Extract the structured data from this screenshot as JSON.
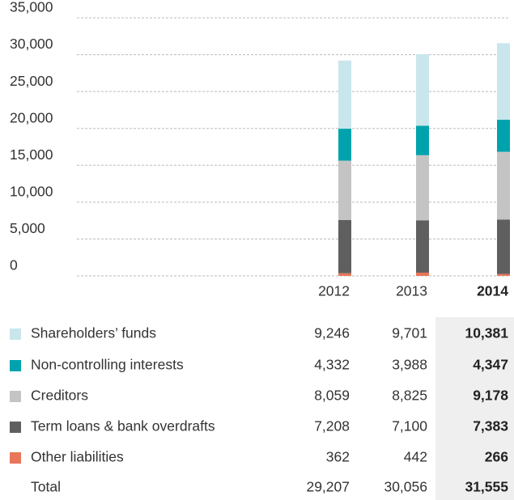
{
  "chart_data": {
    "type": "bar",
    "stacked": true,
    "categories": [
      "2012",
      "2013",
      "2014"
    ],
    "highlight_index": 2,
    "ylim": [
      0,
      35000
    ],
    "yticks": [
      {
        "value": 0,
        "label": "0"
      },
      {
        "value": 5000,
        "label": "5,000"
      },
      {
        "value": 10000,
        "label": "10,000"
      },
      {
        "value": 15000,
        "label": "15,000"
      },
      {
        "value": 20000,
        "label": "20,000"
      },
      {
        "value": 25000,
        "label": "25,000"
      },
      {
        "value": 30000,
        "label": "30,000"
      },
      {
        "value": 35000,
        "label": "35,000"
      }
    ],
    "grid": true,
    "series": [
      {
        "name": "Shareholders’ funds",
        "color": "#c9e6ec",
        "values": [
          9246,
          9701,
          10381
        ],
        "value_labels": [
          "9,246",
          "9,701",
          "10,381"
        ]
      },
      {
        "name": "Non-controlling interests",
        "color": "#00a3ad",
        "values": [
          4332,
          3988,
          4347
        ],
        "value_labels": [
          "4,332",
          "3,988",
          "4,347"
        ]
      },
      {
        "name": "Creditors",
        "color": "#c4c4c4",
        "values": [
          8059,
          8825,
          9178
        ],
        "value_labels": [
          "8,059",
          "8,825",
          "9,178"
        ]
      },
      {
        "name": "Term loans & bank overdrafts",
        "color": "#5f5f5f",
        "values": [
          7208,
          7100,
          7383
        ],
        "value_labels": [
          "7,208",
          "7,100",
          "7,383"
        ]
      },
      {
        "name": "Other liabilities",
        "color": "#e8765a",
        "values": [
          362,
          442,
          266
        ],
        "value_labels": [
          "362",
          "442",
          "266"
        ]
      }
    ],
    "total": {
      "label": "Total",
      "values": [
        29207,
        30056,
        31555
      ],
      "value_labels": [
        "29,207",
        "30,056",
        "31,555"
      ]
    }
  }
}
